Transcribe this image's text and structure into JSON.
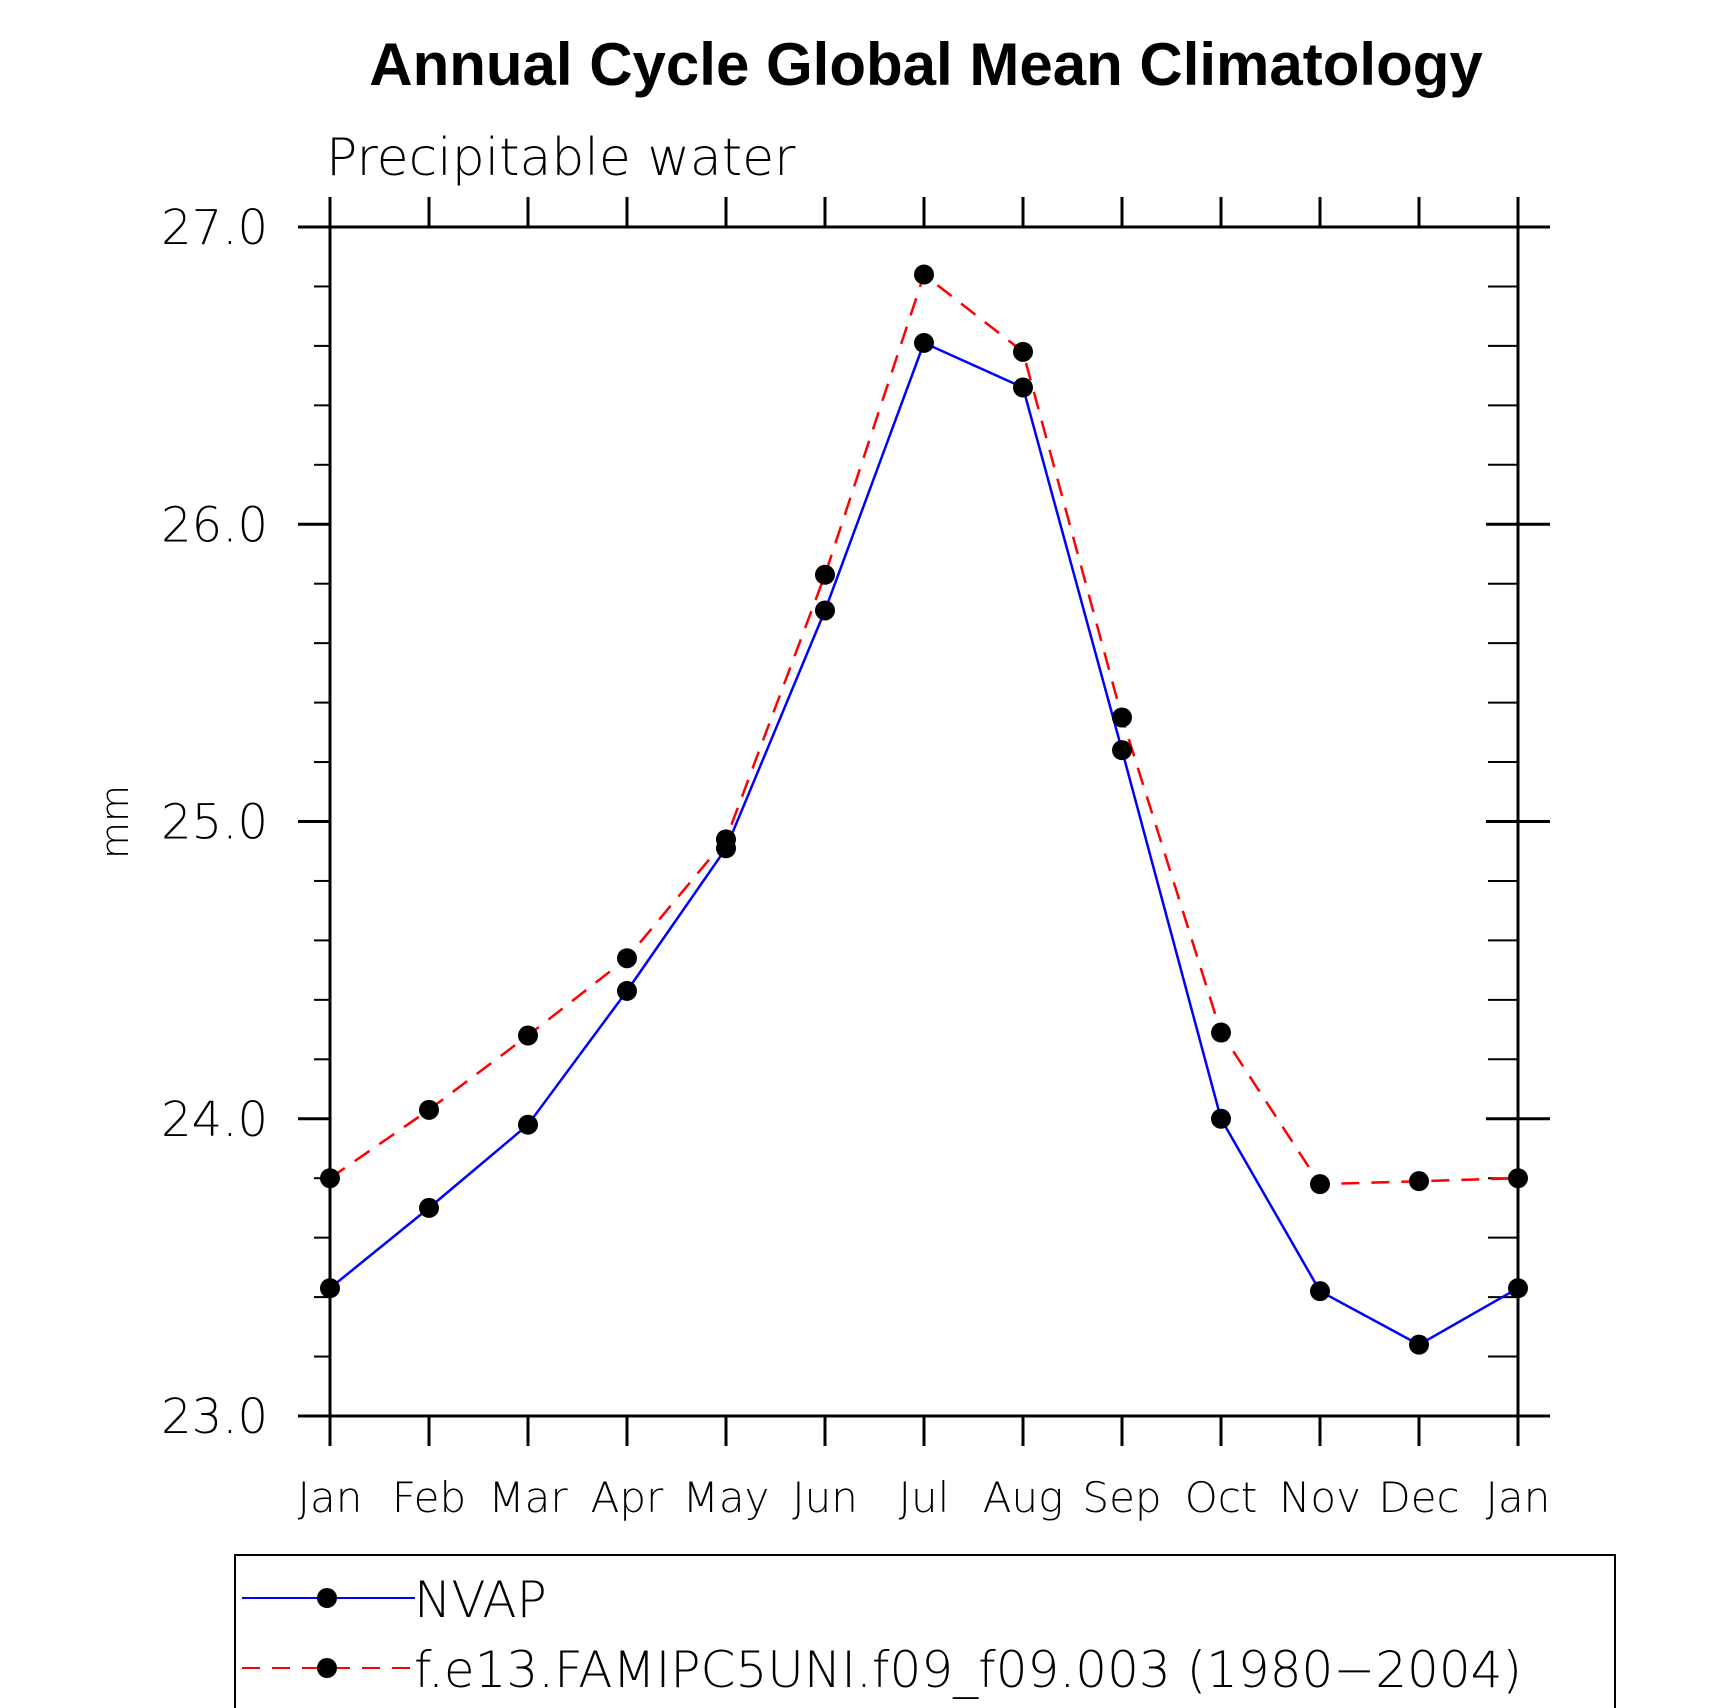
{
  "chart_data": {
    "type": "line",
    "title": "Annual Cycle Global Mean Climatology",
    "subtitle": "Precipitable water",
    "xlabel": "",
    "ylabel": "mm",
    "ylim": [
      23.0,
      27.0
    ],
    "y_ticks": [
      "23.0",
      "24.0",
      "25.0",
      "26.0",
      "27.0"
    ],
    "categories": [
      "Jan",
      "Feb",
      "Mar",
      "Apr",
      "May",
      "Jun",
      "Jul",
      "Aug",
      "Sep",
      "Oct",
      "Nov",
      "Dec",
      "Jan"
    ],
    "series": [
      {
        "name": "NVAP",
        "color": "#0000ff",
        "dash": "solid",
        "values": [
          23.43,
          23.7,
          23.98,
          24.43,
          24.91,
          25.71,
          26.61,
          26.46,
          25.24,
          24.0,
          23.42,
          23.24,
          23.43
        ]
      },
      {
        "name": "f.e13.FAMIPC5UNI.f09_f09.003 (1980−2004)",
        "color": "#ff0000",
        "dash": "dashed",
        "values": [
          23.8,
          24.03,
          24.28,
          24.54,
          24.94,
          25.83,
          26.84,
          26.58,
          25.35,
          24.29,
          23.78,
          23.79,
          23.8
        ]
      }
    ],
    "legend_position": "bottom",
    "marker": "filled-circle",
    "marker_color": "#000000"
  }
}
